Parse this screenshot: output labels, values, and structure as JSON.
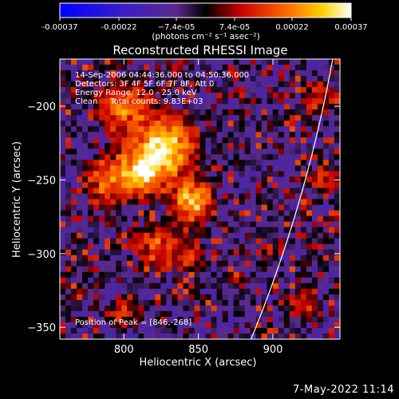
{
  "chart_data": {
    "type": "heatmap",
    "title": "Reconstructed RHESSI Image",
    "xlabel": "Heliocentric X (arcsec)",
    "ylabel": "Heliocentric Y (arcsec)",
    "xlim": [
      757,
      945
    ],
    "ylim": [
      -358,
      -168
    ],
    "x_ticks": [
      800,
      850,
      900
    ],
    "y_ticks": [
      -200,
      -250,
      -300,
      -350
    ],
    "colorbar": {
      "range": [
        -0.00037,
        0.00037
      ],
      "ticks": [
        "-0.00037",
        "-0.00022",
        "−7.4e-05",
        "7.4e-05",
        "0.00022",
        "0.00037"
      ],
      "tick_values": [
        -0.00037,
        -0.00022,
        -7.4e-05,
        7.4e-05,
        0.00022,
        0.00037
      ],
      "unit_label": "(photons cm⁻² s⁻¹ asec⁻²)"
    },
    "annotations": [
      "14-Sep-2006 04:44:36.000 to 04:50:36.000",
      "Detectors: 3F 4F 5F 6F 7F 8F, Att 0",
      "Energy Range: 12.0 - 25.0 keV",
      "Clean     Total counts: 9.83E+03"
    ],
    "peak_label": "Position of Peak = [846,-268]",
    "peak": [
      846,
      -268
    ],
    "sources": [
      {
        "x": 827,
        "y": -228,
        "sigma": 13,
        "amp": 1.0
      },
      {
        "x": 846,
        "y": -265,
        "sigma": 9,
        "amp": 0.85
      },
      {
        "x": 812,
        "y": -245,
        "sigma": 10,
        "amp": 0.75
      },
      {
        "x": 790,
        "y": -250,
        "sigma": 11,
        "amp": 0.55
      },
      {
        "x": 800,
        "y": -200,
        "sigma": 12,
        "amp": 0.55
      },
      {
        "x": 822,
        "y": -295,
        "sigma": 10,
        "amp": 0.45
      },
      {
        "x": 845,
        "y": -300,
        "sigma": 8,
        "amp": 0.3
      },
      {
        "x": 930,
        "y": -195,
        "sigma": 8,
        "amp": 0.35
      },
      {
        "x": 935,
        "y": -250,
        "sigma": 7,
        "amp": 0.3
      },
      {
        "x": 922,
        "y": -335,
        "sigma": 8,
        "amp": 0.3
      },
      {
        "x": 800,
        "y": -340,
        "sigma": 10,
        "amp": 0.25
      }
    ],
    "limb": {
      "center": [
        0,
        0
      ],
      "radius": 955
    }
  },
  "footer": {
    "date": "7-May-2022 11:14"
  }
}
